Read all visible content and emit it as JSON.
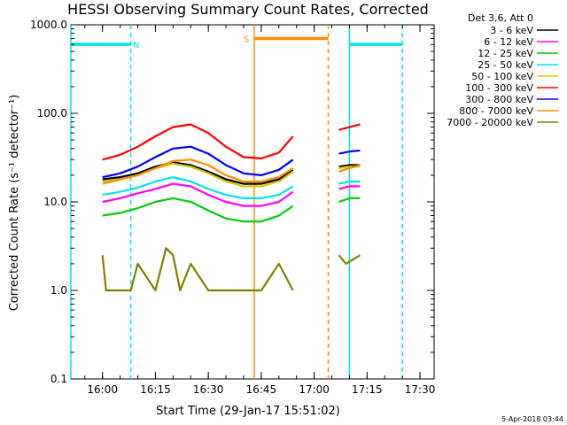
{
  "chart_data": {
    "type": "line",
    "title": "HESSI Observing Summary Count Rates, Corrected",
    "xlabel": "Start Time (29-Jan-17 15:51:02)",
    "ylabel": "Corrected Count Rate (s⁻¹ detector⁻¹)",
    "yscale": "log",
    "ylim": [
      0.1,
      1000
    ],
    "xlim": [
      "15:51:02",
      "17:34:00"
    ],
    "x_ticks": [
      "16:00",
      "16:15",
      "16:30",
      "16:45",
      "17:00",
      "17:15",
      "17:30"
    ],
    "y_ticks": [
      "0.1",
      "1.0",
      "10.0",
      "100.0",
      "1000.0"
    ],
    "grid": false,
    "legend_position": "top-right",
    "legend_header": "Det 3,6, Att 0",
    "footer": "5-Apr-2018 03:44",
    "series": [
      {
        "name": "3 - 6 keV",
        "color": "#000000",
        "x": [
          "16:00",
          "16:05",
          "16:10",
          "16:15",
          "16:20",
          "16:25",
          "16:30",
          "16:35",
          "16:40",
          "16:45",
          "16:50",
          "16:54",
          "17:07",
          "17:10",
          "17:13"
        ],
        "values": [
          18,
          19,
          21,
          25,
          28,
          26,
          22,
          18,
          16,
          16,
          18,
          23,
          25,
          26,
          26
        ]
      },
      {
        "name": "6 - 12 keV",
        "color": "#ff00ff",
        "x": [
          "16:00",
          "16:05",
          "16:10",
          "16:15",
          "16:20",
          "16:25",
          "16:30",
          "16:35",
          "16:40",
          "16:45",
          "16:50",
          "16:54",
          "17:07",
          "17:10",
          "17:13"
        ],
        "values": [
          10,
          11,
          12.5,
          14,
          16,
          15,
          12,
          10,
          9,
          9,
          10,
          13,
          14,
          15,
          15
        ]
      },
      {
        "name": "12 - 25 keV",
        "color": "#00cc00",
        "x": [
          "16:00",
          "16:05",
          "16:10",
          "16:15",
          "16:20",
          "16:25",
          "16:30",
          "16:35",
          "16:40",
          "16:45",
          "16:50",
          "16:54",
          "17:07",
          "17:10",
          "17:13"
        ],
        "values": [
          7,
          7.5,
          8.5,
          10,
          11,
          10,
          8,
          6.5,
          6,
          6,
          7,
          9,
          10,
          11,
          11
        ]
      },
      {
        "name": "25 - 50 keV",
        "color": "#00e5e5",
        "x": [
          "16:00",
          "16:05",
          "16:10",
          "16:15",
          "16:20",
          "16:25",
          "16:30",
          "16:35",
          "16:40",
          "16:45",
          "16:50",
          "16:54",
          "17:07",
          "17:10",
          "17:13"
        ],
        "values": [
          12,
          13,
          14.5,
          17,
          19,
          17,
          14,
          12,
          11,
          11,
          12,
          15,
          16,
          17,
          17
        ]
      },
      {
        "name": "50 - 100 keV",
        "color": "#cccc00",
        "x": [
          "16:00",
          "16:05",
          "16:10",
          "16:15",
          "16:20",
          "16:25",
          "16:30",
          "16:35",
          "16:40",
          "16:45",
          "16:50",
          "16:54",
          "17:07",
          "17:10",
          "17:13"
        ],
        "values": [
          17,
          18,
          20,
          24,
          27,
          25,
          21,
          17,
          15,
          15,
          17,
          22,
          24,
          25,
          25
        ]
      },
      {
        "name": "100 - 300 keV",
        "color": "#ff0000",
        "x": [
          "16:00",
          "16:05",
          "16:10",
          "16:15",
          "16:20",
          "16:25",
          "16:30",
          "16:35",
          "16:40",
          "16:45",
          "16:50",
          "16:54",
          "17:07",
          "17:10",
          "17:13"
        ],
        "values": [
          30,
          34,
          42,
          55,
          70,
          75,
          60,
          42,
          32,
          31,
          36,
          55,
          65,
          70,
          75
        ]
      },
      {
        "name": "300 - 800 keV",
        "color": "#0000ff",
        "x": [
          "16:00",
          "16:05",
          "16:10",
          "16:15",
          "16:20",
          "16:25",
          "16:30",
          "16:35",
          "16:40",
          "16:45",
          "16:50",
          "16:54",
          "17:07",
          "17:10",
          "17:13"
        ],
        "values": [
          19,
          21,
          25,
          32,
          40,
          42,
          35,
          26,
          21,
          20,
          23,
          30,
          35,
          37,
          38
        ]
      },
      {
        "name": "800 - 7000 keV",
        "color": "#ff8c00",
        "x": [
          "16:00",
          "16:05",
          "16:10",
          "16:15",
          "16:20",
          "16:25",
          "16:30",
          "16:35",
          "16:40",
          "16:45",
          "16:50",
          "16:54",
          "17:07",
          "17:10",
          "17:13"
        ],
        "values": [
          16,
          18,
          20,
          24,
          29,
          30,
          26,
          20,
          17,
          17,
          19,
          24,
          22,
          24,
          26
        ]
      },
      {
        "name": "7000 - 20000 keV",
        "color": "#808000",
        "x": [
          "16:00",
          "16:01",
          "16:05",
          "16:08",
          "16:10",
          "16:15",
          "16:18",
          "16:20",
          "16:22",
          "16:25",
          "16:30",
          "16:35",
          "16:40",
          "16:45",
          "16:50",
          "16:54",
          "17:07",
          "17:09",
          "17:13"
        ],
        "values": [
          2.5,
          1.0,
          1.0,
          1.0,
          2.0,
          1.0,
          3.0,
          2.5,
          1.0,
          2.0,
          1.0,
          1.0,
          1.0,
          1.0,
          2.0,
          1.0,
          2.5,
          2.0,
          2.5
        ]
      }
    ],
    "flag_bars": [
      {
        "label": "N",
        "color": "#00e5e5",
        "level": 600,
        "spans": [
          [
            "15:51:02",
            "16:08"
          ],
          [
            "17:10",
            "17:25"
          ]
        ]
      },
      {
        "label": "S",
        "color": "#ff8c00",
        "level": 700,
        "spans": [
          [
            "16:43",
            "17:04"
          ]
        ]
      }
    ],
    "markers": [
      {
        "x": "15:51:02",
        "color": "#00e5e5",
        "style": "solid"
      },
      {
        "x": "16:08",
        "color": "#00e5e5",
        "style": "dashed"
      },
      {
        "x": "16:43",
        "color": "#ff8c00",
        "style": "solid"
      },
      {
        "x": "17:04",
        "color": "#ff8c00",
        "style": "dashed"
      },
      {
        "x": "17:10",
        "color": "#00e5e5",
        "style": "solid"
      },
      {
        "x": "17:25",
        "color": "#00e5e5",
        "style": "dashed"
      }
    ]
  }
}
